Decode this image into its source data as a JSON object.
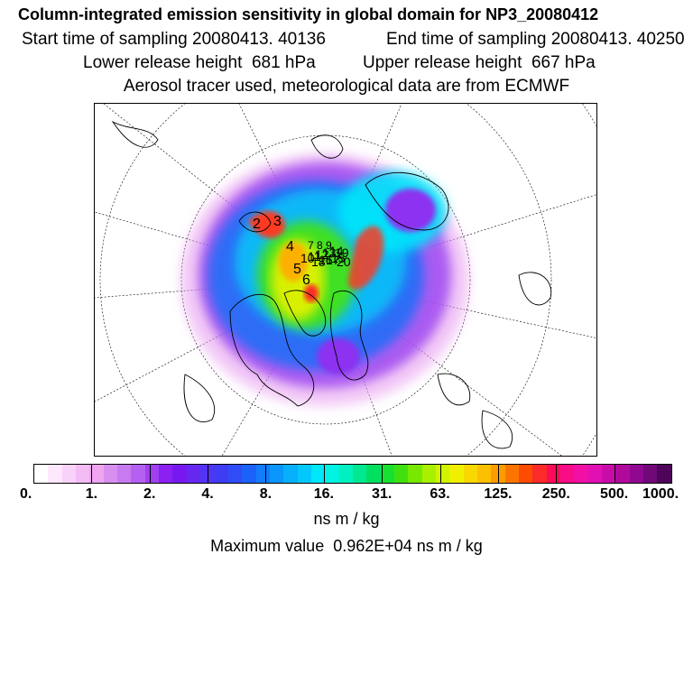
{
  "header": {
    "title": "Column-integrated emission sensitivity in global domain for NP3_20080412",
    "start_time": "Start time of sampling 20080413. 40136",
    "end_time": "End time of sampling 20080413. 40250",
    "lower_release": "Lower release height  681 hPa",
    "upper_release": "Upper release height  667 hPa",
    "tracer_info": "Aerosol tracer used, meteorological data are from ECMWF"
  },
  "map": {
    "projection": "polar stereographic",
    "markers": [
      "2",
      "3",
      "4",
      "5",
      "6",
      "7",
      "8",
      "9",
      "10",
      "11",
      "12",
      "13",
      "14",
      "15",
      "16",
      "17",
      "18",
      "19",
      "20"
    ]
  },
  "colorbar": {
    "colors": [
      "#ffffff",
      "#fde8fd",
      "#f9d2f9",
      "#f4bcf4",
      "#efa5ef",
      "#d890f0",
      "#c87af0",
      "#b560f0",
      "#a040f0",
      "#8c20f0",
      "#7818f0",
      "#6628f0",
      "#5234f2",
      "#3f3cf4",
      "#2f4cf6",
      "#1d62f8",
      "#127cfa",
      "#0a96fb",
      "#06b0fc",
      "#03c8fd",
      "#00e6fa",
      "#00f2e2",
      "#00f0c0",
      "#00e890",
      "#00e060",
      "#18e030",
      "#40e010",
      "#78e800",
      "#a8f000",
      "#d0f400",
      "#f0f000",
      "#f8d800",
      "#fcc000",
      "#fc9c00",
      "#fc7400",
      "#fc4c00",
      "#fc2a28",
      "#fc0c58",
      "#f80c88",
      "#f010a4",
      "#e010b4",
      "#c80ca8",
      "#b00a9c",
      "#900890",
      "#700878",
      "#4e0458"
    ],
    "tick_labels": [
      "0.",
      "1.",
      "2.",
      "4.",
      "8.",
      "16.",
      "31.",
      "63.",
      "125.",
      "250.",
      "500.",
      "1000."
    ],
    "units": "ns m / kg"
  },
  "footer": {
    "maximum": "Maximum value  0.962E+04 ns m / kg"
  }
}
